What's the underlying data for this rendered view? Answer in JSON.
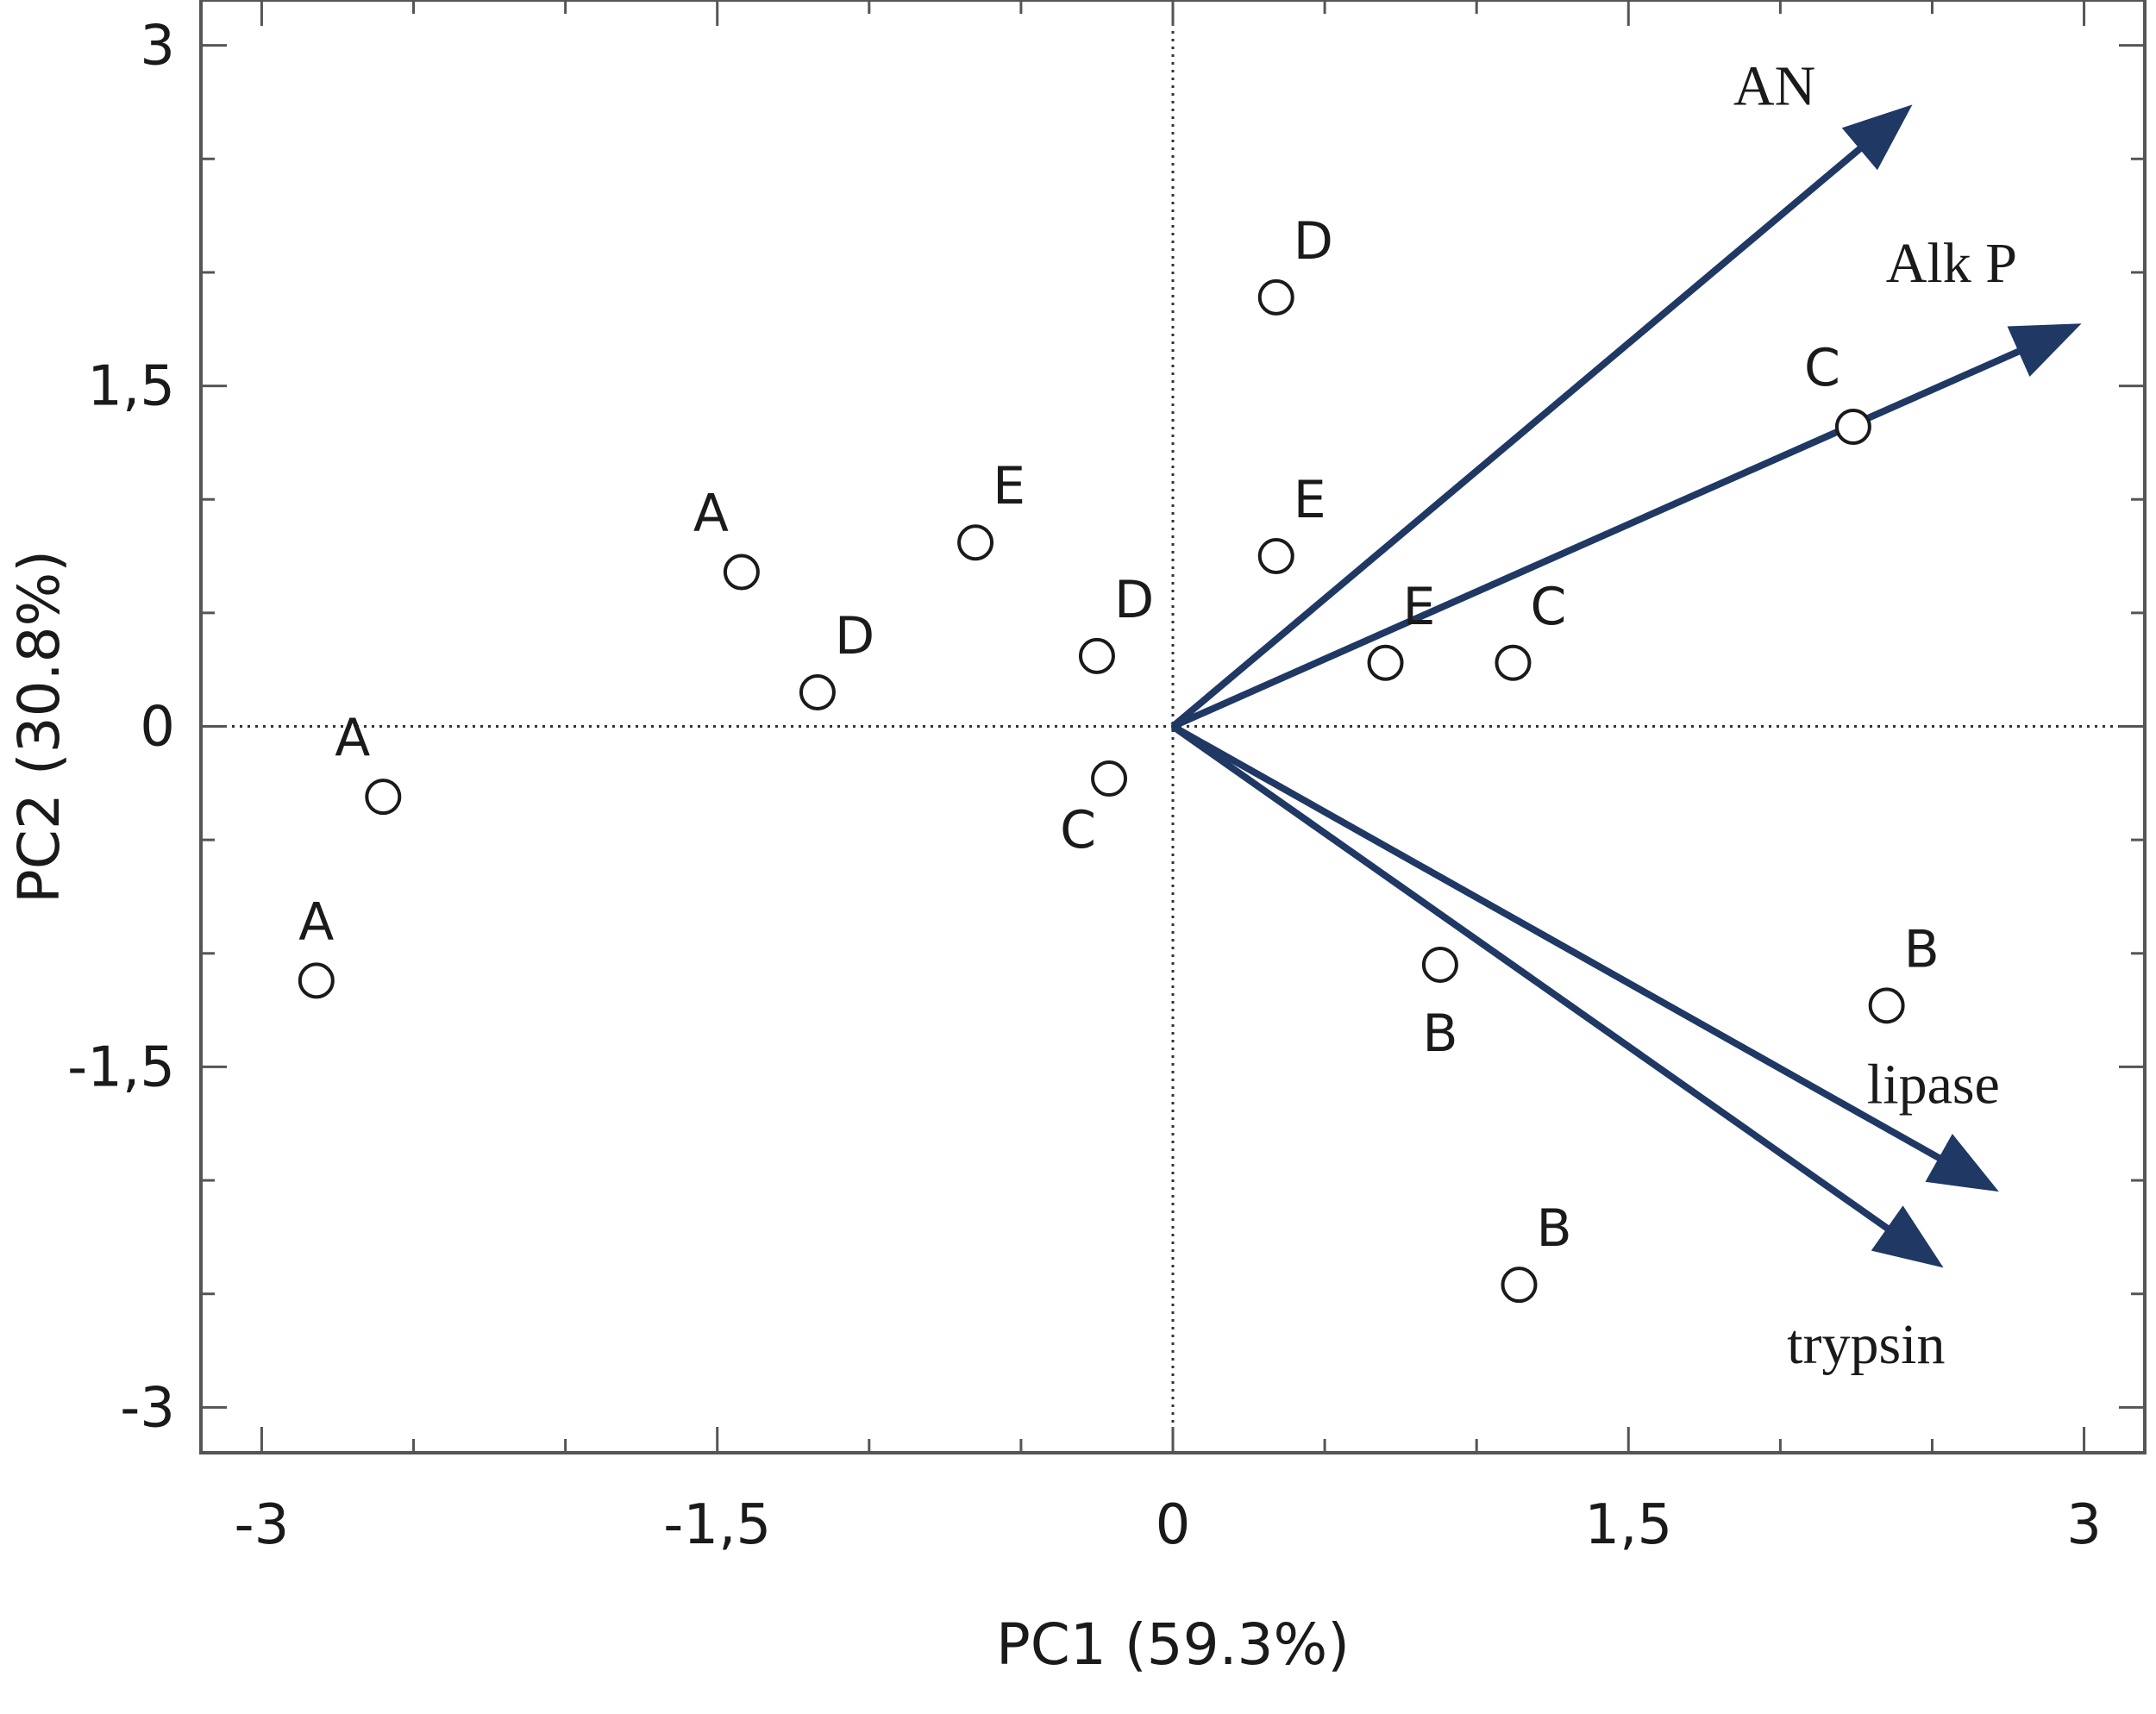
{
  "chart_data": {
    "type": "scatter",
    "xlabel": "PC1 (59.3%)",
    "ylabel": "PC2 (30.8%)",
    "xlim": [
      -3.2,
      3.2
    ],
    "ylim": [
      -3.2,
      3.2
    ],
    "x_ticks": [
      {
        "value": -3,
        "label": "-3"
      },
      {
        "value": -1.5,
        "label": "-1,5"
      },
      {
        "value": 0,
        "label": "0"
      },
      {
        "value": 1.5,
        "label": "1,5"
      },
      {
        "value": 3,
        "label": "3"
      }
    ],
    "y_ticks": [
      {
        "value": 3,
        "label": "3"
      },
      {
        "value": 1.5,
        "label": "1,5"
      },
      {
        "value": 0,
        "label": "0"
      },
      {
        "value": -1.5,
        "label": "-1,5"
      },
      {
        "value": -3,
        "label": "-3"
      }
    ],
    "minor_tick_step": 0.5,
    "reference_lines": {
      "x": 0,
      "y": 0,
      "style": "dotted"
    },
    "points": [
      {
        "label": "A",
        "x": -2.82,
        "y": -1.12,
        "label_pos": "above"
      },
      {
        "label": "A",
        "x": -2.6,
        "y": -0.31,
        "label_pos": "above-left"
      },
      {
        "label": "A",
        "x": -1.42,
        "y": 0.68,
        "label_pos": "above-left"
      },
      {
        "label": "D",
        "x": -1.17,
        "y": 0.15,
        "label_pos": "above-right"
      },
      {
        "label": "E",
        "x": -0.65,
        "y": 0.81,
        "label_pos": "above-right"
      },
      {
        "label": "D",
        "x": -0.25,
        "y": 0.31,
        "label_pos": "above-right"
      },
      {
        "label": "C",
        "x": -0.21,
        "y": -0.23,
        "label_pos": "below-left"
      },
      {
        "label": "D",
        "x": 0.34,
        "y": 1.89,
        "label_pos": "above-right"
      },
      {
        "label": "E",
        "x": 0.34,
        "y": 0.75,
        "label_pos": "above-right"
      },
      {
        "label": "E",
        "x": 0.7,
        "y": 0.28,
        "label_pos": "above-right"
      },
      {
        "label": "C",
        "x": 1.12,
        "y": 0.28,
        "label_pos": "above-right"
      },
      {
        "label": "C",
        "x": 2.24,
        "y": 1.32,
        "label_pos": "above-left"
      },
      {
        "label": "B",
        "x": 0.88,
        "y": -1.05,
        "label_pos": "below"
      },
      {
        "label": "B",
        "x": 2.35,
        "y": -1.23,
        "label_pos": "above-right"
      },
      {
        "label": "B",
        "x": 1.14,
        "y": -2.46,
        "label_pos": "above-right"
      }
    ],
    "vectors": [
      {
        "name": "AN",
        "x": 2.4,
        "y": 2.7,
        "color": "#1f3864"
      },
      {
        "name": "Alk P",
        "x": 2.95,
        "y": 1.75,
        "color": "#1f3864"
      },
      {
        "name": "lipase",
        "x": 2.68,
        "y": -2.02,
        "color": "#1f3864"
      },
      {
        "name": "trypsin",
        "x": 2.5,
        "y": -2.35,
        "color": "#1f3864"
      }
    ]
  }
}
